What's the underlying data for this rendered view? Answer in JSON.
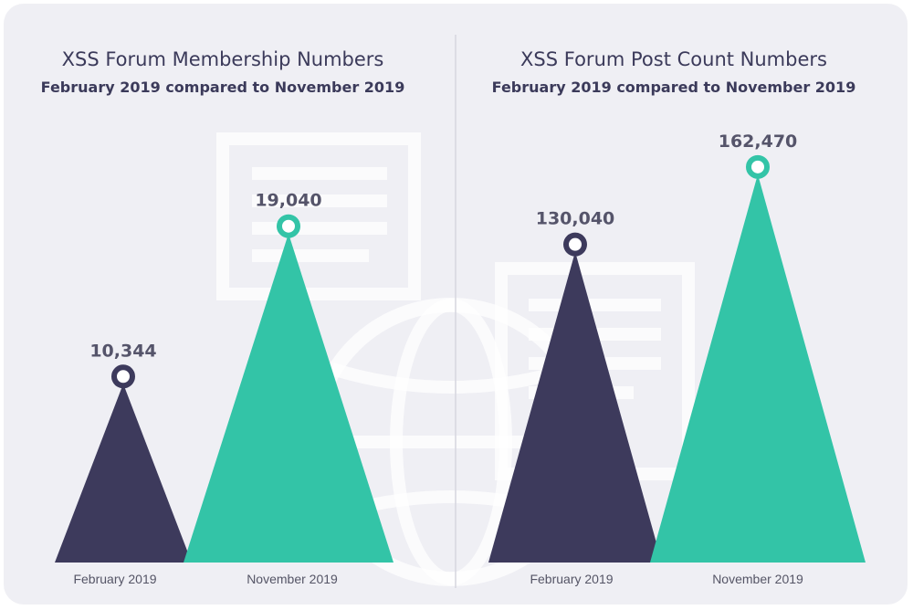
{
  "colors": {
    "background": "#efeff4",
    "february": "#3d3a5c",
    "november": "#33c4a7",
    "watermark": "#ffffff"
  },
  "watermark_icon": "forum-globe-icon",
  "chart_data": [
    {
      "type": "bar",
      "title": "XSS Forum Membership Numbers",
      "subtitle": "February 2019 compared to November 2019",
      "categories": [
        "February 2019",
        "November 2019"
      ],
      "values": [
        10344,
        19040
      ],
      "value_labels": [
        "10,344",
        "19,040"
      ],
      "ylim": [
        0,
        26000
      ]
    },
    {
      "type": "bar",
      "title": "XSS Forum Post Count Numbers",
      "subtitle": "February 2019 compared to November 2019",
      "categories": [
        "February 2019",
        "November 2019"
      ],
      "values": [
        130040,
        162470
      ],
      "value_labels": [
        "130,040",
        "162,470"
      ],
      "ylim": [
        0,
        188000
      ]
    }
  ]
}
